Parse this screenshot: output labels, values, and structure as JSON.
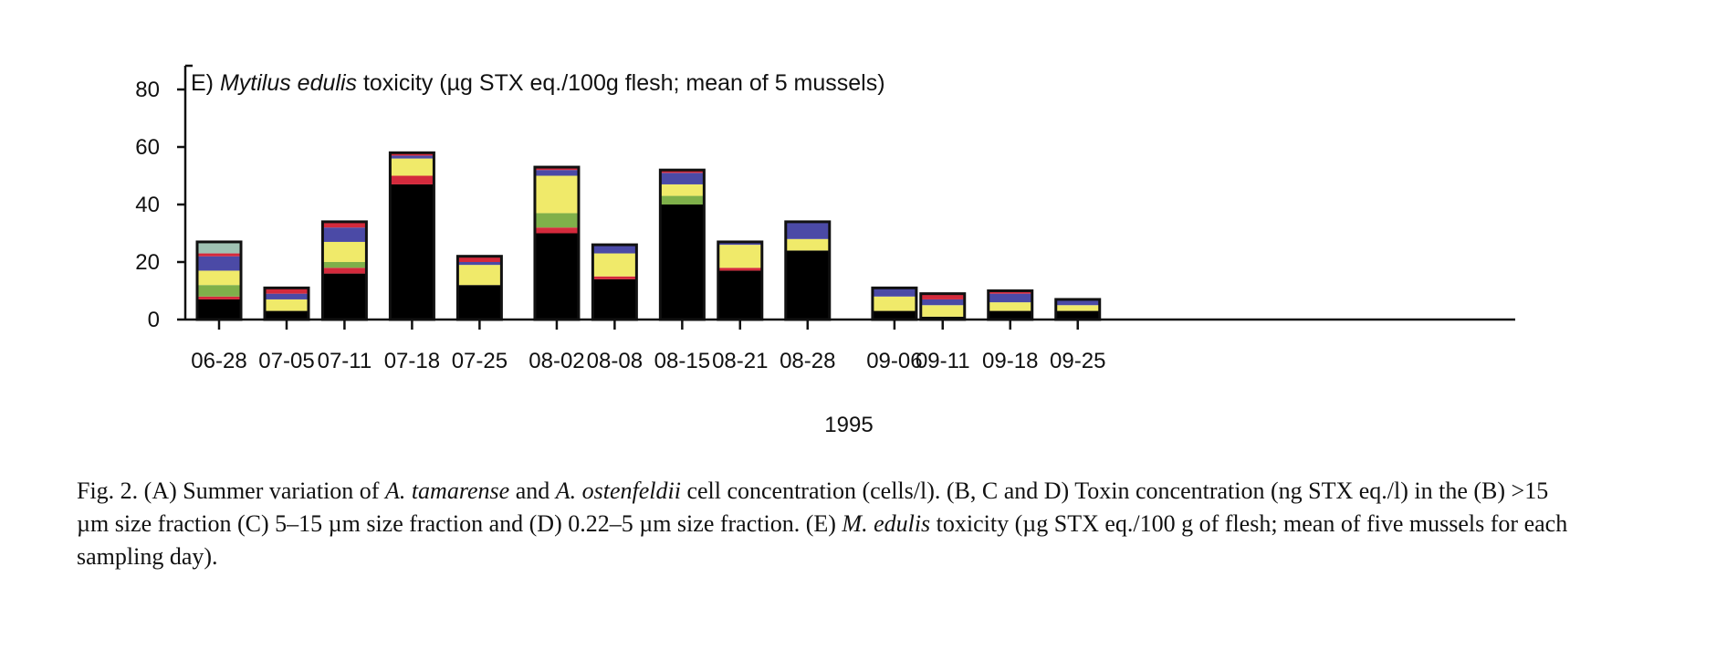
{
  "chart_data": {
    "type": "bar",
    "stacked": true,
    "title_prefix": "E) ",
    "title_species": "Mytilus edulis",
    "title_rest": " toxicity (µg STX eq./100g flesh; mean of 5 mussels)",
    "xlabel": "1995",
    "ylabel": "",
    "ylim": [
      0,
      80
    ],
    "yticks": [
      0,
      20,
      40,
      60,
      80
    ],
    "categories": [
      "06-28",
      "07-05",
      "07-11",
      "07-18",
      "07-25",
      "08-02",
      "08-08",
      "08-15",
      "08-21",
      "08-28",
      "09-06",
      "09-11",
      "09-18",
      "09-25"
    ],
    "date_positions": [
      0,
      7,
      13,
      20,
      27,
      35,
      41,
      48,
      54,
      61,
      70,
      75,
      82,
      89
    ],
    "grid": false,
    "legend": "none",
    "series": [
      {
        "color": "#000000",
        "values": [
          7,
          3,
          16,
          47,
          12,
          30,
          14,
          40,
          17,
          24,
          3,
          1,
          3,
          3
        ]
      },
      {
        "color": "#d42a3c",
        "values": [
          1,
          0,
          2,
          3,
          0,
          2,
          1,
          0,
          1,
          0,
          0,
          0,
          0,
          0
        ]
      },
      {
        "color": "#7fb04a",
        "values": [
          4,
          0,
          2,
          0,
          0,
          5,
          0,
          3,
          0,
          0,
          0,
          0,
          0,
          0
        ]
      },
      {
        "color": "#f0ea6a",
        "values": [
          5,
          4,
          7,
          6,
          7,
          13,
          8,
          4,
          8,
          4,
          5,
          4,
          3,
          2
        ]
      },
      {
        "color": "#4b4aa6",
        "values": [
          5,
          2,
          5,
          1,
          1,
          2,
          3,
          4,
          1,
          6,
          3,
          2,
          3,
          2
        ]
      },
      {
        "color": "#d42a3c",
        "values": [
          1,
          2,
          2,
          1,
          2,
          1,
          0,
          1,
          0,
          0,
          0,
          2,
          1,
          0
        ]
      },
      {
        "color": "#9fc2b3",
        "values": [
          4,
          0,
          0,
          0,
          0,
          0,
          0,
          0,
          0,
          0,
          0,
          0,
          0,
          0
        ]
      }
    ]
  },
  "caption": {
    "p1": "Fig. 2. (A) Summer variation of ",
    "i1": "A. tamarense",
    "p2": " and ",
    "i2": "A. ostenfeldii",
    "p3": " cell concentration (cells/l). (B, C and D) Toxin concentration (ng STX eq./l) in the (B) >15 µm size fraction (C) 5–15 µm size fraction and (D) 0.22–5 µm size fraction. (E) ",
    "i3": "M. edulis",
    "p4": " toxicity (µg STX eq./100 g of flesh; mean of five mussels for each sampling day)."
  }
}
